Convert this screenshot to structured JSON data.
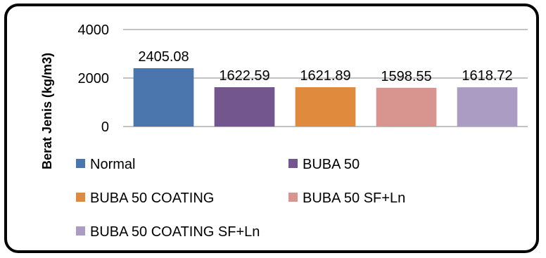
{
  "chart_data": {
    "type": "bar",
    "categories": [
      "Normal",
      "BUBA 50",
      "BUBA 50 COATING",
      "BUBA 50 SF+Ln",
      "BUBA 50 COATING SF+Ln"
    ],
    "values": [
      2405.08,
      1622.59,
      1621.89,
      1598.55,
      1618.72
    ],
    "data_labels": [
      "2405.08",
      "1622.59",
      "1621.89",
      "1598.55",
      "1618.72"
    ],
    "colors": [
      "#4A76AD",
      "#74568F",
      "#E08A3E",
      "#D89590",
      "#AB9CC4"
    ],
    "ylabel": "Berat Jenis (kg/m3)",
    "xlabel": "",
    "title": "",
    "ylim": [
      0,
      4000
    ],
    "yticks": [
      "0",
      "2000",
      "4000"
    ],
    "grid": true,
    "legend_position": "bottom"
  }
}
